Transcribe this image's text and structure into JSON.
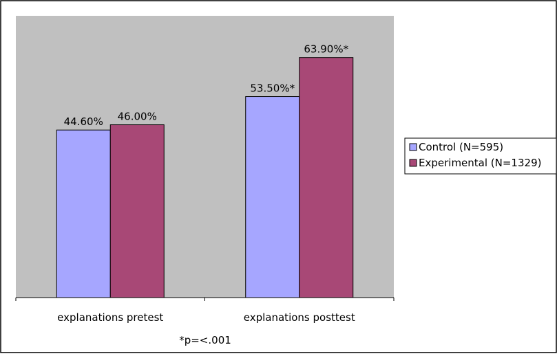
{
  "chart_data": {
    "type": "bar",
    "title": "",
    "xlabel": "",
    "ylabel": "",
    "ylim": [
      0,
      75
    ],
    "grid": false,
    "legend_position": "right",
    "plot_background": "#c0c0c0",
    "categories": [
      "explanations pretest",
      "explanations posttest"
    ],
    "series": [
      {
        "name": "Control (N=595)",
        "color": "#a6a6ff",
        "values": [
          44.6,
          53.5
        ],
        "data_labels": [
          "44.60%",
          "53.50%*"
        ]
      },
      {
        "name": "Experimental (N=1329)",
        "color": "#a84876",
        "values": [
          46.0,
          63.9
        ],
        "data_labels": [
          "46.00%",
          "63.90%*"
        ]
      }
    ],
    "annotations": [
      "*p=<.001"
    ]
  }
}
